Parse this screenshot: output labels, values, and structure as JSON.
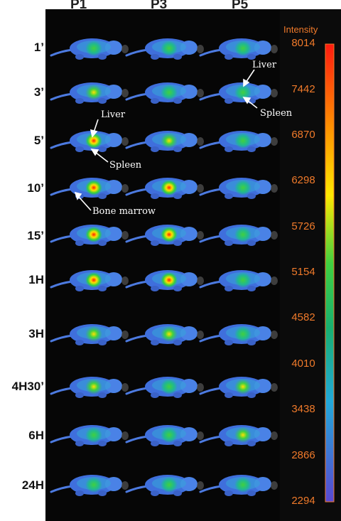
{
  "columns": [
    "P1",
    "P3",
    "P5"
  ],
  "rows": [
    "1’",
    "3’",
    "5’",
    "10’",
    "15’",
    "1H",
    "3H",
    "4H30’",
    "6H",
    "24H"
  ],
  "colorbar": {
    "title": "Intensity",
    "ticks": [
      "8014",
      "7442",
      "6870",
      "6298",
      "5726",
      "5154",
      "4582",
      "4010",
      "3438",
      "2866",
      "2294"
    ],
    "range": [
      2294,
      8014
    ],
    "tick_color": "#f07a2a",
    "gradient": [
      "#ff2a10",
      "#ff8c00",
      "#ffe800",
      "#2ecc40",
      "#20b0a0",
      "#3a6cff",
      "#6050d8"
    ]
  },
  "annotations": {
    "liver": "Liver",
    "spleen": "Spleen",
    "bone_marrow": "Bone marrow"
  },
  "background": "#050505"
}
